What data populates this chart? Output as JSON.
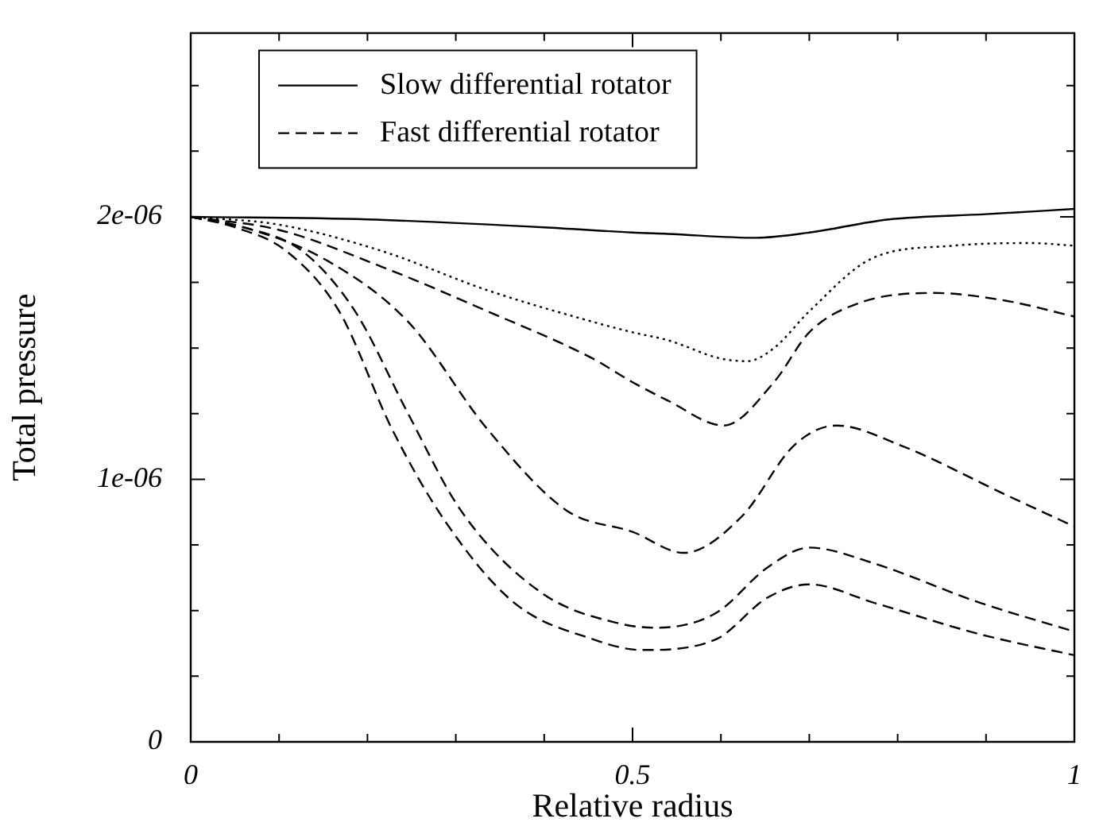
{
  "chart_data": {
    "type": "line",
    "xlabel": "Relative radius",
    "ylabel": "Total pressure",
    "xlim": [
      0,
      1
    ],
    "ylim": [
      0,
      2.7e-06
    ],
    "xticks": [
      0,
      {
        "value": 0.1,
        "label": null
      },
      {
        "value": 0.2,
        "label": null
      },
      {
        "value": 0.3,
        "label": null
      },
      {
        "value": 0.4,
        "label": null
      },
      0.5,
      {
        "value": 0.6,
        "label": null
      },
      {
        "value": 0.7,
        "label": null
      },
      {
        "value": 0.8,
        "label": null
      },
      {
        "value": 0.9,
        "label": null
      },
      1
    ],
    "yticks": [
      0,
      {
        "value": 2.5e-07,
        "label": null
      },
      {
        "value": 5e-07,
        "label": null
      },
      {
        "value": 7.5e-07,
        "label": null
      },
      {
        "value": 1e-06,
        "label": "1e-06"
      },
      {
        "value": 1.25e-06,
        "label": null
      },
      {
        "value": 1.5e-06,
        "label": null
      },
      {
        "value": 1.75e-06,
        "label": null
      },
      {
        "value": 2e-06,
        "label": "2e-06"
      },
      {
        "value": 2.25e-06,
        "label": null
      },
      {
        "value": 2.5e-06,
        "label": null
      }
    ],
    "grid": false,
    "legend": "top left",
    "marker": "none",
    "series": [
      {
        "name": "Slow differential rotator",
        "color": "#000000",
        "line_style": "solid",
        "x": [
          0,
          0.2,
          0.4,
          0.5,
          0.54,
          0.64,
          0.7,
          0.79,
          0.9,
          1
        ],
        "values": [
          2e-06,
          1.99e-06,
          1.96e-06,
          1.94e-06,
          1.935e-06,
          1.92e-06,
          1.94e-06,
          1.99e-06,
          2.01e-06,
          2.03e-06
        ]
      },
      {
        "color": "#000000",
        "line_style": "dotted",
        "x": [
          0,
          0.1,
          0.216,
          0.336,
          0.455,
          0.5,
          0.54,
          0.6,
          0.63,
          0.66,
          0.7,
          0.77,
          0.863,
          0.95,
          1
        ],
        "values": [
          2e-06,
          1.97e-06,
          1.87e-06,
          1.72e-06,
          1.6e-06,
          1.56e-06,
          1.53e-06,
          1.46e-06,
          1.45e-06,
          1.5e-06,
          1.64e-06,
          1.84e-06,
          1.89e-06,
          1.9e-06,
          1.89e-06
        ]
      },
      {
        "name": "Fast differential rotator",
        "color": "#000000",
        "line_style": "dashed",
        "x": [
          0,
          0.1,
          0.216,
          0.336,
          0.455,
          0.5,
          0.54,
          0.603,
          0.66,
          0.7,
          0.755,
          0.84,
          0.923,
          1
        ],
        "values": [
          2e-06,
          1.95e-06,
          1.81e-06,
          1.64e-06,
          1.46e-06,
          1.37e-06,
          1.3e-06,
          1.205e-06,
          1.37e-06,
          1.56e-06,
          1.67e-06,
          1.71e-06,
          1.68e-06,
          1.62e-06
        ]
      },
      {
        "color": "#000000",
        "line_style": "dashed",
        "x": [
          0,
          0.07,
          0.156,
          0.246,
          0.336,
          0.426,
          0.5,
          0.558,
          0.624,
          0.683,
          0.731,
          0.803,
          0.923,
          1
        ],
        "values": [
          2e-06,
          1.95e-06,
          1.83e-06,
          1.6e-06,
          1.19e-06,
          8.8e-07,
          8e-07,
          7.2e-07,
          8.6e-07,
          1.13e-06,
          1.205e-06,
          1.13e-06,
          9.4e-07,
          8.2e-07
        ]
      },
      {
        "color": "#000000",
        "line_style": "dashed",
        "x": [
          0,
          0.06,
          0.126,
          0.186,
          0.246,
          0.306,
          0.396,
          0.486,
          0.528,
          0.594,
          0.653,
          0.7,
          0.773,
          0.893,
          1
        ],
        "values": [
          2e-06,
          1.96e-06,
          1.87e-06,
          1.64e-06,
          1.25e-06,
          8.8e-07,
          5.7e-07,
          4.5e-07,
          4.35e-07,
          4.9e-07,
          6.65e-07,
          7.4e-07,
          6.8e-07,
          5.3e-07,
          4.2e-07
        ]
      },
      {
        "color": "#000000",
        "line_style": "dashed",
        "x": [
          0,
          0.05,
          0.108,
          0.168,
          0.228,
          0.288,
          0.366,
          0.456,
          0.51,
          0.594,
          0.653,
          0.7,
          0.773,
          0.893,
          1
        ],
        "values": [
          2e-06,
          1.96e-06,
          1.87e-06,
          1.64e-06,
          1.19e-06,
          8.4e-07,
          5.3e-07,
          3.9e-07,
          3.5e-07,
          3.9e-07,
          5.5e-07,
          6e-07,
          5.3e-07,
          4.1e-07,
          3.3e-07
        ]
      }
    ]
  }
}
